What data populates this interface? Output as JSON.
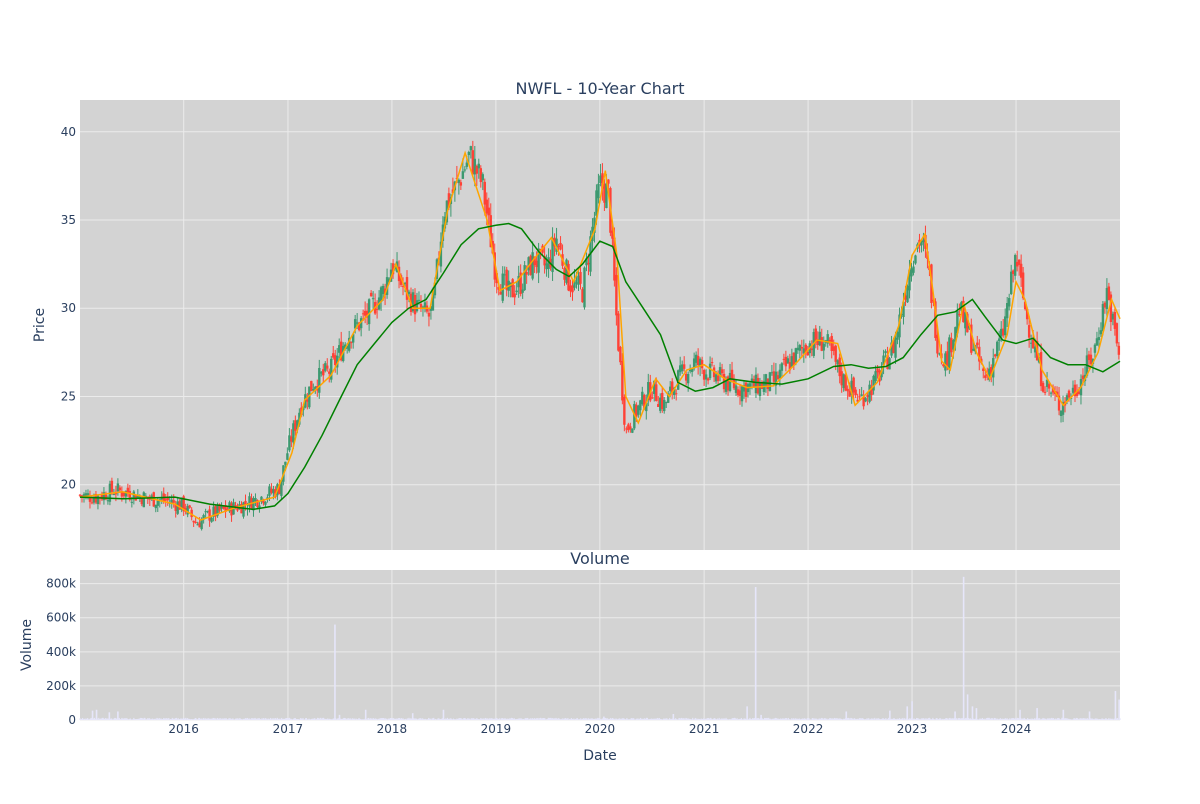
{
  "chart_data": {
    "type": "candlestick",
    "title": "NWFL - 10-Year Chart",
    "subplot_title": "Volume",
    "xlabel": "Date",
    "ylabel_price": "Price",
    "ylabel_volume": "Volume",
    "x_range": [
      "2015-01-02",
      "2024-12-31"
    ],
    "x_ticks": [
      "2016",
      "2017",
      "2018",
      "2019",
      "2020",
      "2021",
      "2022",
      "2023",
      "2024"
    ],
    "price_ylim": [
      16.3,
      41.8
    ],
    "price_ticks": [
      20,
      25,
      30,
      35,
      40
    ],
    "volume_ylim": [
      0,
      880000
    ],
    "volume_ticks": [
      0,
      200000,
      400000,
      600000,
      800000
    ],
    "volume_tick_labels": [
      "0",
      "200k",
      "400k",
      "600k",
      "800k"
    ],
    "grid": true,
    "legend": "none",
    "colors": {
      "background": "#d3d3d3",
      "grid": "#ebebeb",
      "increasing": "#3d9970",
      "decreasing": "#ff4136",
      "ma_short": "#ffa500",
      "ma_long": "#008000",
      "volume": "#e6e6fa"
    },
    "series": [
      {
        "type": "candlestick",
        "close_path": [
          [
            "2015-01-02",
            19.4
          ],
          [
            "2015-03-01",
            19.3
          ],
          [
            "2015-05-01",
            19.7
          ],
          [
            "2015-07-01",
            19.5
          ],
          [
            "2015-09-01",
            19.2
          ],
          [
            "2015-11-01",
            19.1
          ],
          [
            "2016-01-01",
            18.8
          ],
          [
            "2016-02-15",
            17.8
          ],
          [
            "2016-04-01",
            18.3
          ],
          [
            "2016-06-01",
            18.6
          ],
          [
            "2016-08-01",
            18.9
          ],
          [
            "2016-10-01",
            19.3
          ],
          [
            "2016-12-01",
            19.8
          ],
          [
            "2017-01-01",
            22.0
          ],
          [
            "2017-02-15",
            24.5
          ],
          [
            "2017-04-01",
            25.8
          ],
          [
            "2017-06-01",
            26.5
          ],
          [
            "2017-08-01",
            28.5
          ],
          [
            "2017-10-01",
            29.5
          ],
          [
            "2017-12-01",
            31.0
          ],
          [
            "2018-01-01",
            32.5
          ],
          [
            "2018-02-15",
            31.0
          ],
          [
            "2018-04-01",
            30.0
          ],
          [
            "2018-05-15",
            29.5
          ],
          [
            "2018-06-01",
            31.0
          ],
          [
            "2018-07-01",
            35.5
          ],
          [
            "2018-09-01",
            37.5
          ],
          [
            "2018-10-01",
            38.7
          ],
          [
            "2018-11-15",
            37.0
          ],
          [
            "2019-01-01",
            32.0
          ],
          [
            "2019-02-15",
            30.8
          ],
          [
            "2019-04-01",
            31.5
          ],
          [
            "2019-05-15",
            32.8
          ],
          [
            "2019-07-01",
            32.3
          ],
          [
            "2019-08-01",
            34.0
          ],
          [
            "2019-09-15",
            31.5
          ],
          [
            "2019-11-01",
            31.0
          ],
          [
            "2019-12-01",
            34.0
          ],
          [
            "2020-01-01",
            37.0
          ],
          [
            "2020-02-01",
            36.5
          ],
          [
            "2020-03-01",
            29.0
          ],
          [
            "2020-04-01",
            23.0
          ],
          [
            "2020-05-01",
            24.0
          ],
          [
            "2020-07-01",
            25.5
          ],
          [
            "2020-08-15",
            24.5
          ],
          [
            "2020-10-01",
            26.0
          ],
          [
            "2020-12-01",
            27.0
          ],
          [
            "2021-01-01",
            26.5
          ],
          [
            "2021-03-01",
            26.0
          ],
          [
            "2021-05-01",
            25.5
          ],
          [
            "2021-07-01",
            25.6
          ],
          [
            "2021-09-01",
            25.8
          ],
          [
            "2021-11-01",
            27.0
          ],
          [
            "2022-01-01",
            28.0
          ],
          [
            "2022-03-01",
            28.2
          ],
          [
            "2022-05-01",
            26.0
          ],
          [
            "2022-07-01",
            24.8
          ],
          [
            "2022-09-01",
            26.0
          ],
          [
            "2022-11-01",
            28.0
          ],
          [
            "2023-01-01",
            33.0
          ],
          [
            "2023-02-01",
            34.0
          ],
          [
            "2023-03-01",
            32.0
          ],
          [
            "2023-04-01",
            28.0
          ],
          [
            "2023-05-01",
            27.0
          ],
          [
            "2023-06-15",
            30.0
          ],
          [
            "2023-08-01",
            28.0
          ],
          [
            "2023-09-15",
            26.0
          ],
          [
            "2023-11-15",
            28.5
          ],
          [
            "2024-01-01",
            33.0
          ],
          [
            "2024-02-01",
            30.0
          ],
          [
            "2024-04-01",
            26.0
          ],
          [
            "2024-06-01",
            24.5
          ],
          [
            "2024-08-01",
            25.5
          ],
          [
            "2024-10-01",
            27.5
          ],
          [
            "2024-11-15",
            31.0
          ],
          [
            "2024-12-31",
            27.0
          ]
        ]
      },
      {
        "type": "line",
        "role": "short moving average",
        "points": [
          [
            "2015-01-02",
            19.3
          ],
          [
            "2015-06-01",
            19.6
          ],
          [
            "2015-12-01",
            18.9
          ],
          [
            "2016-03-01",
            18.0
          ],
          [
            "2016-07-01",
            18.7
          ],
          [
            "2016-11-15",
            19.3
          ],
          [
            "2017-01-15",
            21.8
          ],
          [
            "2017-03-01",
            24.8
          ],
          [
            "2017-06-01",
            26.2
          ],
          [
            "2017-09-01",
            29.0
          ],
          [
            "2017-12-01",
            30.5
          ],
          [
            "2018-01-15",
            32.5
          ],
          [
            "2018-03-15",
            30.0
          ],
          [
            "2018-05-15",
            30.0
          ],
          [
            "2018-07-15",
            35.5
          ],
          [
            "2018-09-15",
            38.8
          ],
          [
            "2018-12-01",
            35.0
          ],
          [
            "2019-01-15",
            31.0
          ],
          [
            "2019-03-15",
            31.5
          ],
          [
            "2019-05-15",
            32.8
          ],
          [
            "2019-07-15",
            34.0
          ],
          [
            "2019-10-01",
            31.5
          ],
          [
            "2019-12-15",
            34.5
          ],
          [
            "2020-01-20",
            37.8
          ],
          [
            "2020-03-01",
            33.0
          ],
          [
            "2020-04-01",
            25.0
          ],
          [
            "2020-05-15",
            23.5
          ],
          [
            "2020-07-15",
            26.0
          ],
          [
            "2020-09-01",
            25.0
          ],
          [
            "2020-11-01",
            26.5
          ],
          [
            "2021-01-01",
            26.8
          ],
          [
            "2021-03-15",
            26.0
          ],
          [
            "2021-06-01",
            25.5
          ],
          [
            "2021-09-01",
            25.6
          ],
          [
            "2021-11-15",
            26.8
          ],
          [
            "2022-02-01",
            28.2
          ],
          [
            "2022-04-15",
            28.0
          ],
          [
            "2022-06-15",
            24.5
          ],
          [
            "2022-09-01",
            25.8
          ],
          [
            "2022-11-15",
            29.0
          ],
          [
            "2023-01-01",
            33.0
          ],
          [
            "2023-02-15",
            34.2
          ],
          [
            "2023-03-15",
            31.0
          ],
          [
            "2023-04-15",
            27.0
          ],
          [
            "2023-05-15",
            26.5
          ],
          [
            "2023-07-01",
            30.3
          ],
          [
            "2023-08-15",
            27.5
          ],
          [
            "2023-10-01",
            26.0
          ],
          [
            "2023-12-01",
            28.5
          ],
          [
            "2024-01-01",
            31.5
          ],
          [
            "2024-02-01",
            30.5
          ],
          [
            "2024-04-01",
            26.5
          ],
          [
            "2024-06-15",
            24.5
          ],
          [
            "2024-08-15",
            25.5
          ],
          [
            "2024-10-15",
            27.5
          ],
          [
            "2024-12-01",
            30.5
          ],
          [
            "2024-12-31",
            29.4
          ]
        ]
      },
      {
        "type": "line",
        "role": "long moving average",
        "points": [
          [
            "2015-01-02",
            19.3
          ],
          [
            "2015-06-01",
            19.2
          ],
          [
            "2015-12-01",
            19.3
          ],
          [
            "2016-04-01",
            18.9
          ],
          [
            "2016-09-01",
            18.6
          ],
          [
            "2016-11-15",
            18.8
          ],
          [
            "2017-01-01",
            19.5
          ],
          [
            "2017-03-01",
            21.0
          ],
          [
            "2017-05-01",
            22.8
          ],
          [
            "2017-07-01",
            24.8
          ],
          [
            "2017-09-01",
            26.8
          ],
          [
            "2017-11-01",
            28.0
          ],
          [
            "2018-01-01",
            29.2
          ],
          [
            "2018-03-01",
            30.0
          ],
          [
            "2018-05-01",
            30.5
          ],
          [
            "2018-07-01",
            32.0
          ],
          [
            "2018-09-01",
            33.6
          ],
          [
            "2018-11-01",
            34.5
          ],
          [
            "2019-01-01",
            34.7
          ],
          [
            "2019-02-15",
            34.8
          ],
          [
            "2019-04-01",
            34.5
          ],
          [
            "2019-06-01",
            33.2
          ],
          [
            "2019-08-01",
            32.2
          ],
          [
            "2019-09-15",
            31.8
          ],
          [
            "2019-11-01",
            32.5
          ],
          [
            "2020-01-01",
            33.8
          ],
          [
            "2020-02-15",
            33.5
          ],
          [
            "2020-04-01",
            31.5
          ],
          [
            "2020-06-01",
            30.0
          ],
          [
            "2020-08-01",
            28.5
          ],
          [
            "2020-10-01",
            25.8
          ],
          [
            "2020-12-01",
            25.3
          ],
          [
            "2021-02-01",
            25.5
          ],
          [
            "2021-04-01",
            26.0
          ],
          [
            "2021-07-01",
            25.8
          ],
          [
            "2021-10-01",
            25.7
          ],
          [
            "2022-01-01",
            26.0
          ],
          [
            "2022-04-01",
            26.7
          ],
          [
            "2022-06-01",
            26.8
          ],
          [
            "2022-08-01",
            26.6
          ],
          [
            "2022-10-01",
            26.7
          ],
          [
            "2022-12-01",
            27.2
          ],
          [
            "2023-02-01",
            28.5
          ],
          [
            "2023-04-01",
            29.6
          ],
          [
            "2023-06-01",
            29.8
          ],
          [
            "2023-08-01",
            30.5
          ],
          [
            "2023-09-15",
            29.5
          ],
          [
            "2023-11-15",
            28.2
          ],
          [
            "2024-01-01",
            28.0
          ],
          [
            "2024-03-01",
            28.3
          ],
          [
            "2024-05-01",
            27.2
          ],
          [
            "2024-07-01",
            26.8
          ],
          [
            "2024-09-01",
            26.8
          ],
          [
            "2024-11-01",
            26.4
          ],
          [
            "2024-12-31",
            27.0
          ]
        ]
      },
      {
        "type": "bar",
        "role": "volume",
        "baseline": 8000,
        "spikes": [
          [
            "2015-02-15",
            55000
          ],
          [
            "2015-03-01",
            60000
          ],
          [
            "2015-04-15",
            45000
          ],
          [
            "2015-05-15",
            50000
          ],
          [
            "2017-06-15",
            560000
          ],
          [
            "2017-07-01",
            30000
          ],
          [
            "2017-10-01",
            60000
          ],
          [
            "2018-03-15",
            40000
          ],
          [
            "2018-07-01",
            60000
          ],
          [
            "2020-01-15",
            20000
          ],
          [
            "2020-09-15",
            35000
          ],
          [
            "2021-06-01",
            80000
          ],
          [
            "2021-07-01",
            780000
          ],
          [
            "2021-07-20",
            30000
          ],
          [
            "2022-05-15",
            50000
          ],
          [
            "2022-10-15",
            55000
          ],
          [
            "2022-12-15",
            80000
          ],
          [
            "2023-01-01",
            110000
          ],
          [
            "2023-06-01",
            50000
          ],
          [
            "2023-07-01",
            840000
          ],
          [
            "2023-07-15",
            150000
          ],
          [
            "2023-08-01",
            80000
          ],
          [
            "2023-08-15",
            70000
          ],
          [
            "2024-01-15",
            60000
          ],
          [
            "2024-03-15",
            70000
          ],
          [
            "2024-06-15",
            60000
          ],
          [
            "2024-09-15",
            50000
          ],
          [
            "2024-12-15",
            170000
          ],
          [
            "2024-12-28",
            120000
          ]
        ]
      }
    ]
  }
}
